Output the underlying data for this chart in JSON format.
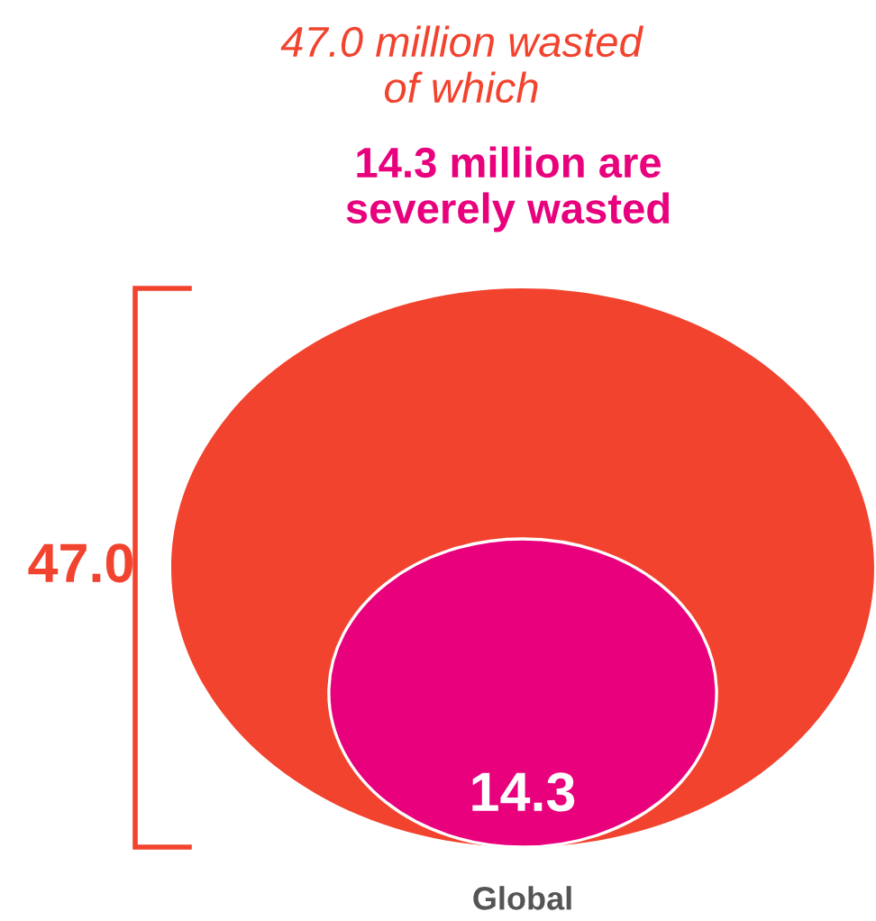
{
  "chart_data": {
    "type": "other",
    "title": "47.0 million wasted\nof which",
    "subtitle": "14.3 million are\nseverely wasted",
    "categories": [
      "Global"
    ],
    "series": [
      {
        "color": "#f2432e",
        "values": [
          47.0
        ],
        "value_labels": [
          "47.0"
        ]
      },
      {
        "color": "#e8007d",
        "values": [
          14.3
        ],
        "value_labels": [
          "14.3"
        ]
      }
    ]
  }
}
